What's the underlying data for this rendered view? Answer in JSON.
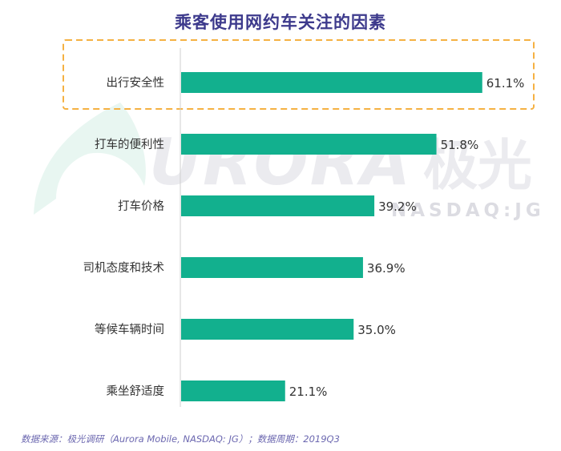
{
  "watermark": {
    "brand": "URORA",
    "brand_cn": "极光",
    "ticker": "NASDAQ:JG"
  },
  "chart_data": {
    "type": "bar",
    "orientation": "horizontal",
    "title": "乘客使用网约车关注的因素",
    "categories": [
      "出行安全性",
      "打车的便利性",
      "打车价格",
      "司机态度和技术",
      "等候车辆时间",
      "乘坐舒适度"
    ],
    "values": [
      61.1,
      51.8,
      39.2,
      36.9,
      35.0,
      21.1
    ],
    "value_labels": [
      "61.1%",
      "51.8%",
      "39.2%",
      "36.9%",
      "35.0%",
      "21.1%"
    ],
    "xlim": [
      0,
      100
    ],
    "grid": false,
    "bar_color": "#12b08e",
    "highlight_color": "#f5b142",
    "highlight_index": 0
  },
  "footer": {
    "source": "数据来源：极光调研（Aurora Mobile, NASDAQ: JG）；数据周期：2019Q3"
  }
}
